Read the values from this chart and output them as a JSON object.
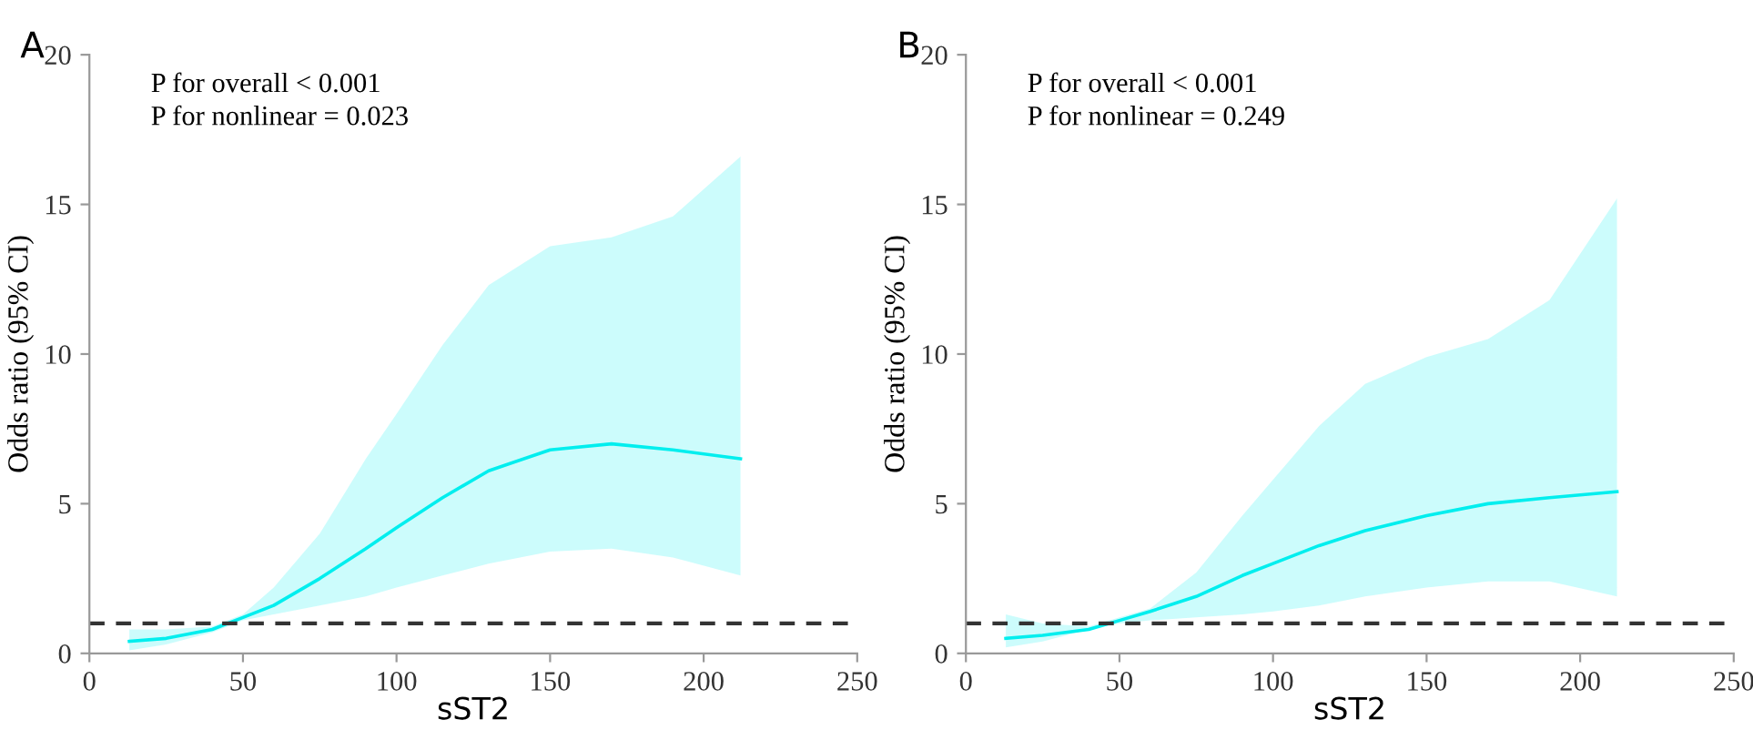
{
  "chart_data": [
    {
      "type": "line",
      "title": "A",
      "xlabel": "sST2",
      "ylabel": "Odds ratio (95% CI)",
      "annotations": [
        "P for overall < 0.001",
        "P for nonlinear = 0.023"
      ],
      "x": [
        13,
        25,
        40,
        50,
        60,
        75,
        90,
        100,
        115,
        130,
        150,
        170,
        190,
        212
      ],
      "series": [
        {
          "color": "#00eeee",
          "values": [
            0.4,
            0.5,
            0.8,
            1.2,
            1.6,
            2.5,
            3.5,
            4.2,
            5.2,
            6.1,
            6.8,
            7.0,
            6.8,
            6.5
          ],
          "lower": [
            0.1,
            0.3,
            0.7,
            1.1,
            1.3,
            1.6,
            1.9,
            2.2,
            2.6,
            3.0,
            3.4,
            3.5,
            3.2,
            2.6
          ],
          "upper": [
            0.8,
            0.8,
            0.9,
            1.3,
            2.2,
            4.0,
            6.5,
            8.0,
            10.3,
            12.3,
            13.6,
            13.9,
            14.6,
            16.6
          ]
        }
      ],
      "xlim": [
        0,
        250
      ],
      "xticks": [
        0,
        50,
        100,
        150,
        200,
        250
      ],
      "ylim": [
        0,
        20
      ],
      "yticks": [
        0,
        5,
        10,
        15,
        20
      ],
      "ref_lines": [
        {
          "axis": "y",
          "value": 1,
          "color": "#333333",
          "line_style": "dashed"
        }
      ]
    },
    {
      "type": "line",
      "title": "B",
      "xlabel": "sST2",
      "ylabel": "Odds ratio (95% CI)",
      "annotations": [
        "P for overall < 0.001",
        "P for nonlinear = 0.249"
      ],
      "x": [
        13,
        25,
        40,
        50,
        60,
        75,
        90,
        100,
        115,
        130,
        150,
        170,
        190,
        212
      ],
      "series": [
        {
          "color": "#00eeee",
          "values": [
            0.5,
            0.6,
            0.8,
            1.1,
            1.4,
            1.9,
            2.6,
            3.0,
            3.6,
            4.1,
            4.6,
            5.0,
            5.2,
            5.4
          ],
          "lower": [
            0.2,
            0.4,
            0.8,
            1.0,
            1.1,
            1.2,
            1.3,
            1.4,
            1.6,
            1.9,
            2.2,
            2.4,
            2.4,
            1.9
          ],
          "upper": [
            1.3,
            1.0,
            0.9,
            1.2,
            1.5,
            2.7,
            4.6,
            5.8,
            7.6,
            9.0,
            9.9,
            10.5,
            11.8,
            15.2
          ]
        }
      ],
      "xlim": [
        0,
        250
      ],
      "xticks": [
        0,
        50,
        100,
        150,
        200,
        250
      ],
      "ylim": [
        0,
        20
      ],
      "yticks": [
        0,
        5,
        10,
        15,
        20
      ],
      "ref_lines": [
        {
          "axis": "y",
          "value": 1,
          "color": "#333333",
          "line_style": "dashed"
        }
      ]
    }
  ]
}
